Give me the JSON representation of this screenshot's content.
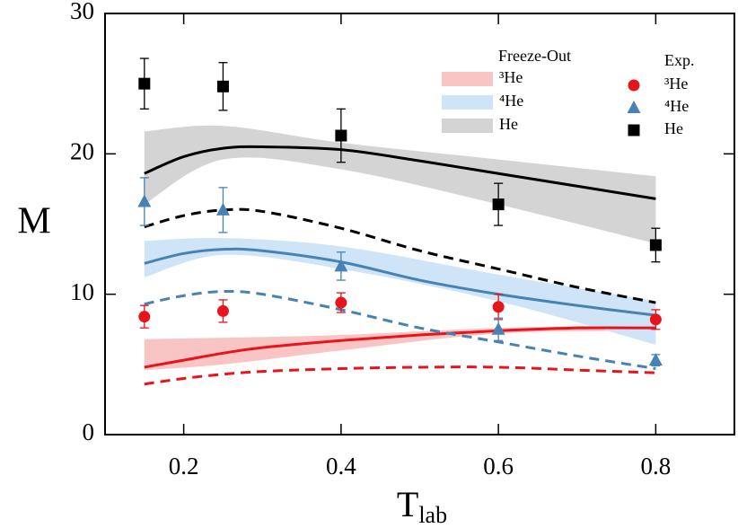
{
  "chart_data": {
    "type": "line",
    "ylabel": "M",
    "xlabel": "T",
    "xlabel_subscript": "lab",
    "xlim": [
      0.1,
      0.9
    ],
    "xticks": [
      0.2,
      0.4,
      0.6,
      0.8
    ],
    "ylim": [
      0,
      30
    ],
    "yticks": [
      0,
      10,
      20,
      30
    ],
    "band_legend_title": "Freeze-Out",
    "point_legend_title": "Exp.",
    "x": [
      0.15,
      0.2,
      0.25,
      0.3,
      0.4,
      0.5,
      0.6,
      0.7,
      0.8
    ],
    "bands": [
      {
        "name": "³He",
        "color": "#f9c4c4",
        "x": [
          0.15,
          0.25,
          0.4,
          0.6,
          0.8
        ],
        "lower": [
          4.6,
          5.0,
          6.0,
          7.2,
          7.4
        ],
        "upper": [
          6.8,
          6.9,
          7.1,
          7.6,
          7.8
        ]
      },
      {
        "name": "⁴He",
        "color": "#cfe4f6",
        "x": [
          0.15,
          0.25,
          0.4,
          0.6,
          0.8
        ],
        "lower": [
          11.2,
          12.8,
          11.8,
          9.5,
          6.4
        ],
        "upper": [
          13.8,
          14.0,
          13.4,
          11.4,
          9.5
        ]
      },
      {
        "name": "He",
        "color": "#d4d4d4",
        "x": [
          0.15,
          0.25,
          0.4,
          0.6,
          0.8
        ],
        "lower": [
          16.4,
          19.6,
          18.9,
          16.4,
          13.6
        ],
        "upper": [
          21.6,
          22.0,
          20.8,
          19.6,
          18.4
        ]
      }
    ],
    "lines": [
      {
        "color": "#e8141c",
        "dashed": false,
        "values": [
          4.8,
          5.3,
          5.8,
          6.2,
          6.7,
          7.1,
          7.4,
          7.6,
          7.6
        ]
      },
      {
        "color": "#e8141c",
        "dashed": true,
        "values": [
          3.6,
          4.0,
          4.3,
          4.5,
          4.7,
          4.8,
          4.8,
          4.6,
          4.4
        ]
      },
      {
        "color": "#4682b4",
        "dashed": false,
        "values": [
          12.2,
          12.9,
          13.2,
          13.1,
          12.3,
          11.0,
          10.0,
          9.2,
          8.5
        ]
      },
      {
        "color": "#4682b4",
        "dashed": true,
        "values": [
          9.3,
          9.9,
          10.2,
          10.0,
          8.9,
          7.6,
          6.6,
          5.6,
          4.7
        ]
      },
      {
        "color": "#000000",
        "dashed": false,
        "values": [
          18.6,
          19.8,
          20.4,
          20.5,
          20.3,
          19.5,
          18.6,
          17.7,
          16.8
        ]
      },
      {
        "color": "#000000",
        "dashed": true,
        "values": [
          14.8,
          15.6,
          16.0,
          15.9,
          14.7,
          13.1,
          11.8,
          10.5,
          9.4
        ]
      }
    ],
    "points": [
      {
        "name": "³He",
        "color": "#e8141c",
        "marker": "circle",
        "x": [
          0.15,
          0.25,
          0.4,
          0.6,
          0.8
        ],
        "values": [
          8.4,
          8.8,
          9.4,
          9.1,
          8.2
        ],
        "errors": [
          0.8,
          0.8,
          0.7,
          0.9,
          0.7
        ]
      },
      {
        "name": "⁴He",
        "color": "#4682b4",
        "marker": "triangle",
        "x": [
          0.15,
          0.25,
          0.4,
          0.6,
          0.8
        ],
        "values": [
          16.6,
          16.0,
          12.0,
          7.5,
          5.3
        ],
        "errors": [
          1.7,
          1.6,
          1.0,
          0.8,
          0.4
        ]
      },
      {
        "name": "He",
        "color": "#000000",
        "marker": "square",
        "x": [
          0.15,
          0.25,
          0.4,
          0.6,
          0.8
        ],
        "values": [
          25.0,
          24.8,
          21.3,
          16.4,
          13.5
        ],
        "errors": [
          1.8,
          1.7,
          1.9,
          1.5,
          1.2
        ]
      }
    ]
  }
}
